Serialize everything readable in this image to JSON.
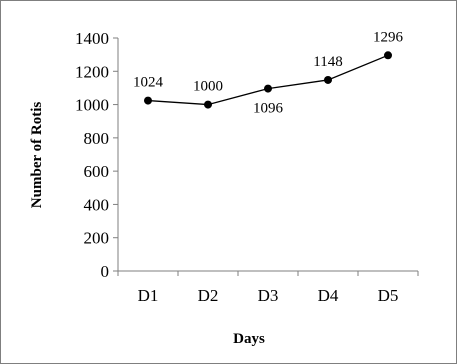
{
  "chart_data": {
    "type": "line",
    "title": "",
    "xlabel": "Days",
    "ylabel": "Number of Rotis",
    "categories": [
      "D1",
      "D2",
      "D3",
      "D4",
      "D5"
    ],
    "series": [
      {
        "values": [
          1024,
          1000,
          1096,
          1148,
          1296
        ]
      }
    ],
    "data_labels": [
      "1024",
      "1000",
      "1096",
      "1148",
      "1296"
    ],
    "data_label_position": [
      "above",
      "above",
      "below",
      "above",
      "above"
    ],
    "y_ticks": [
      0,
      200,
      400,
      600,
      800,
      1000,
      1200,
      1400
    ],
    "ylim": [
      0,
      1400
    ],
    "grid": false,
    "legend": "none",
    "colors": {
      "line": "#000000",
      "marker": "#000000",
      "axis": "#7f7f7f"
    }
  }
}
